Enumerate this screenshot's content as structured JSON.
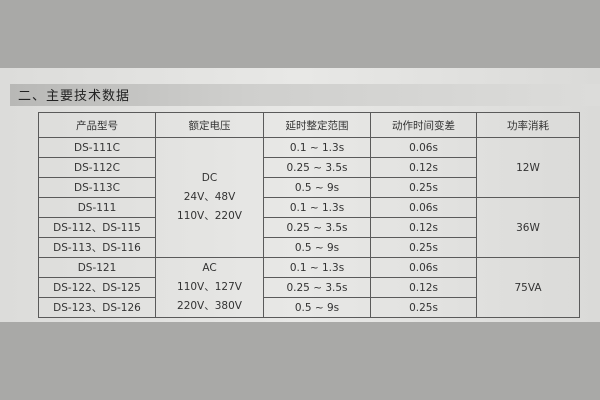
{
  "section_title": "二、主要技术数据",
  "headers": [
    "产品型号",
    "额定电压",
    "延时整定范围",
    "动作时间变差",
    "功率消耗"
  ],
  "models": [
    "DS-111C",
    "DS-112C",
    "DS-113C",
    "DS-111",
    "DS-112、DS-115",
    "DS-113、DS-116",
    "DS-121",
    "DS-122、DS-125",
    "DS-123、DS-126"
  ],
  "voltage_groups": [
    {
      "lines": [
        "DC",
        "24V、48V",
        "110V、220V"
      ]
    },
    {
      "lines": [
        "AC",
        "110V、127V",
        "220V、380V"
      ]
    }
  ],
  "delay_ranges": [
    "0.1 ~ 1.3s",
    "0.25 ~ 3.5s",
    "0.5 ~ 9s",
    "0.1 ~ 1.3s",
    "0.25 ~ 3.5s",
    "0.5 ~ 9s",
    "0.1 ~ 1.3s",
    "0.25 ~ 3.5s",
    "0.5 ~ 9s"
  ],
  "time_variation": [
    "0.06s",
    "0.12s",
    "0.25s",
    "0.06s",
    "0.12s",
    "0.25s",
    "0.06s",
    "0.12s",
    "0.25s"
  ],
  "power": [
    "12W",
    "36W",
    "75VA"
  ]
}
